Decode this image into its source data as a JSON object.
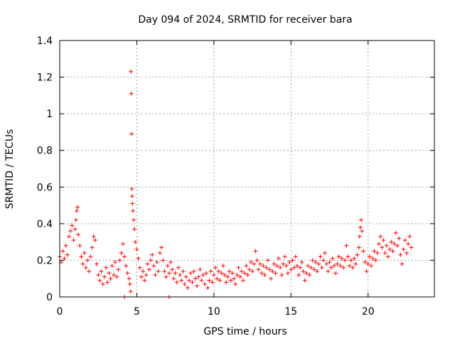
{
  "chart_data": {
    "type": "scatter",
    "title": "Day 094 of 2024, SRMTID for receiver bara",
    "xlabel": "GPS time / hours",
    "ylabel": "SRMTID / TECUs",
    "xlim": [
      0,
      24.3
    ],
    "ylim": [
      0,
      1.4
    ],
    "xticks": [
      0,
      5,
      10,
      15,
      20
    ],
    "yticks": [
      0,
      0.2,
      0.4,
      0.6,
      0.8,
      1,
      1.2,
      1.4
    ],
    "xtick_labels": [
      "0",
      "5",
      "10",
      "15",
      "20"
    ],
    "ytick_labels": [
      "0",
      "0.2",
      "0.4",
      "0.6",
      "0.8",
      "1",
      "1.2",
      "1.4"
    ],
    "grid": true,
    "marker": "+",
    "color": "#ff0000",
    "series": [
      {
        "name": "SRMTID",
        "points": [
          [
            0.0,
            0.22
          ],
          [
            0.1,
            0.19
          ],
          [
            0.2,
            0.25
          ],
          [
            0.3,
            0.21
          ],
          [
            0.4,
            0.28
          ],
          [
            0.5,
            0.23
          ],
          [
            0.6,
            0.33
          ],
          [
            0.7,
            0.36
          ],
          [
            0.8,
            0.39
          ],
          [
            0.9,
            0.31
          ],
          [
            1.0,
            0.37
          ],
          [
            1.05,
            0.42
          ],
          [
            1.1,
            0.47
          ],
          [
            1.15,
            0.49
          ],
          [
            1.2,
            0.34
          ],
          [
            1.3,
            0.28
          ],
          [
            1.4,
            0.22
          ],
          [
            1.5,
            0.18
          ],
          [
            1.6,
            0.24
          ],
          [
            1.7,
            0.16
          ],
          [
            1.8,
            0.2
          ],
          [
            1.9,
            0.14
          ],
          [
            2.0,
            0.22
          ],
          [
            2.1,
            0.27
          ],
          [
            2.2,
            0.33
          ],
          [
            2.3,
            0.31
          ],
          [
            2.4,
            0.18
          ],
          [
            2.5,
            0.12
          ],
          [
            2.6,
            0.09
          ],
          [
            2.7,
            0.14
          ],
          [
            2.8,
            0.07
          ],
          [
            2.9,
            0.11
          ],
          [
            3.0,
            0.16
          ],
          [
            3.1,
            0.08
          ],
          [
            3.2,
            0.13
          ],
          [
            3.3,
            0.1
          ],
          [
            3.4,
            0.17
          ],
          [
            3.5,
            0.12
          ],
          [
            3.6,
            0.19
          ],
          [
            3.7,
            0.11
          ],
          [
            3.8,
            0.15
          ],
          [
            3.9,
            0.2
          ],
          [
            4.0,
            0.24
          ],
          [
            4.1,
            0.29
          ],
          [
            4.2,
            0.22
          ],
          [
            4.2,
            0.0
          ],
          [
            4.3,
            0.17
          ],
          [
            4.4,
            0.13
          ],
          [
            4.5,
            0.1
          ],
          [
            4.55,
            0.07
          ],
          [
            4.6,
            0.03
          ],
          [
            4.62,
            1.23
          ],
          [
            4.64,
            1.11
          ],
          [
            4.66,
            0.89
          ],
          [
            4.68,
            0.59
          ],
          [
            4.7,
            0.55
          ],
          [
            4.72,
            0.51
          ],
          [
            4.75,
            0.47
          ],
          [
            4.8,
            0.42
          ],
          [
            4.85,
            0.37
          ],
          [
            4.9,
            0.3
          ],
          [
            5.0,
            0.26
          ],
          [
            5.1,
            0.21
          ],
          [
            5.2,
            0.16
          ],
          [
            5.3,
            0.11
          ],
          [
            5.4,
            0.14
          ],
          [
            5.5,
            0.09
          ],
          [
            5.6,
            0.12
          ],
          [
            5.7,
            0.18
          ],
          [
            5.8,
            0.15
          ],
          [
            5.9,
            0.2
          ],
          [
            6.0,
            0.23
          ],
          [
            6.1,
            0.17
          ],
          [
            6.2,
            0.12
          ],
          [
            6.3,
            0.19
          ],
          [
            6.4,
            0.14
          ],
          [
            6.5,
            0.24
          ],
          [
            6.6,
            0.27
          ],
          [
            6.7,
            0.2
          ],
          [
            6.8,
            0.14
          ],
          [
            6.9,
            0.11
          ],
          [
            7.0,
            0.17
          ],
          [
            7.1,
            0.13
          ],
          [
            7.1,
            0.0
          ],
          [
            7.2,
            0.19
          ],
          [
            7.3,
            0.15
          ],
          [
            7.4,
            0.1
          ],
          [
            7.5,
            0.13
          ],
          [
            7.6,
            0.08
          ],
          [
            7.7,
            0.16
          ],
          [
            7.8,
            0.12
          ],
          [
            7.9,
            0.09
          ],
          [
            8.0,
            0.14
          ],
          [
            8.1,
            0.07
          ],
          [
            8.2,
            0.11
          ],
          [
            8.3,
            0.05
          ],
          [
            8.4,
            0.09
          ],
          [
            8.5,
            0.13
          ],
          [
            8.6,
            0.08
          ],
          [
            8.7,
            0.14
          ],
          [
            8.8,
            0.1
          ],
          [
            8.9,
            0.06
          ],
          [
            9.0,
            0.11
          ],
          [
            9.1,
            0.15
          ],
          [
            9.2,
            0.09
          ],
          [
            9.3,
            0.12
          ],
          [
            9.4,
            0.07
          ],
          [
            9.5,
            0.13
          ],
          [
            9.6,
            0.05
          ],
          [
            9.7,
            0.09
          ],
          [
            9.8,
            0.14
          ],
          [
            9.9,
            0.08
          ],
          [
            10.0,
            0.12
          ],
          [
            10.1,
            0.16
          ],
          [
            10.2,
            0.1
          ],
          [
            10.3,
            0.14
          ],
          [
            10.4,
            0.09
          ],
          [
            10.5,
            0.13
          ],
          [
            10.6,
            0.17
          ],
          [
            10.7,
            0.12
          ],
          [
            10.8,
            0.08
          ],
          [
            10.9,
            0.11
          ],
          [
            11.0,
            0.14
          ],
          [
            11.1,
            0.09
          ],
          [
            11.2,
            0.13
          ],
          [
            11.3,
            0.1
          ],
          [
            11.4,
            0.07
          ],
          [
            11.5,
            0.12
          ],
          [
            11.6,
            0.16
          ],
          [
            11.7,
            0.11
          ],
          [
            11.8,
            0.14
          ],
          [
            11.9,
            0.09
          ],
          [
            12.0,
            0.13
          ],
          [
            12.1,
            0.17
          ],
          [
            12.2,
            0.12
          ],
          [
            12.3,
            0.15
          ],
          [
            12.4,
            0.19
          ],
          [
            12.5,
            0.14
          ],
          [
            12.6,
            0.18
          ],
          [
            12.7,
            0.25
          ],
          [
            12.8,
            0.2
          ],
          [
            12.9,
            0.15
          ],
          [
            13.0,
            0.18
          ],
          [
            13.1,
            0.13
          ],
          [
            13.2,
            0.17
          ],
          [
            13.3,
            0.12
          ],
          [
            13.4,
            0.16
          ],
          [
            13.5,
            0.2
          ],
          [
            13.6,
            0.15
          ],
          [
            13.7,
            0.1
          ],
          [
            13.8,
            0.14
          ],
          [
            13.9,
            0.18
          ],
          [
            14.0,
            0.13
          ],
          [
            14.1,
            0.17
          ],
          [
            14.2,
            0.21
          ],
          [
            14.3,
            0.16
          ],
          [
            14.4,
            0.12
          ],
          [
            14.5,
            0.18
          ],
          [
            14.6,
            0.22
          ],
          [
            14.7,
            0.17
          ],
          [
            14.8,
            0.13
          ],
          [
            14.9,
            0.19
          ],
          [
            15.0,
            0.15
          ],
          [
            15.1,
            0.2
          ],
          [
            15.2,
            0.16
          ],
          [
            15.3,
            0.22
          ],
          [
            15.4,
            0.17
          ],
          [
            15.5,
            0.12
          ],
          [
            15.6,
            0.16
          ],
          [
            15.7,
            0.19
          ],
          [
            15.8,
            0.14
          ],
          [
            15.9,
            0.09
          ],
          [
            16.0,
            0.13
          ],
          [
            16.1,
            0.17
          ],
          [
            16.2,
            0.12
          ],
          [
            16.3,
            0.16
          ],
          [
            16.4,
            0.2
          ],
          [
            16.5,
            0.15
          ],
          [
            16.6,
            0.19
          ],
          [
            16.7,
            0.14
          ],
          [
            16.8,
            0.18
          ],
          [
            16.9,
            0.22
          ],
          [
            17.0,
            0.16
          ],
          [
            17.1,
            0.2
          ],
          [
            17.2,
            0.24
          ],
          [
            17.3,
            0.18
          ],
          [
            17.4,
            0.14
          ],
          [
            17.5,
            0.19
          ],
          [
            17.6,
            0.16
          ],
          [
            17.7,
            0.21
          ],
          [
            17.8,
            0.17
          ],
          [
            17.9,
            0.13
          ],
          [
            18.0,
            0.18
          ],
          [
            18.1,
            0.22
          ],
          [
            18.2,
            0.17
          ],
          [
            18.3,
            0.21
          ],
          [
            18.4,
            0.16
          ],
          [
            18.5,
            0.2
          ],
          [
            18.6,
            0.28
          ],
          [
            18.7,
            0.22
          ],
          [
            18.8,
            0.17
          ],
          [
            18.9,
            0.2
          ],
          [
            19.0,
            0.16
          ],
          [
            19.1,
            0.21
          ],
          [
            19.2,
            0.18
          ],
          [
            19.3,
            0.23
          ],
          [
            19.4,
            0.27
          ],
          [
            19.45,
            0.33
          ],
          [
            19.5,
            0.38
          ],
          [
            19.55,
            0.42
          ],
          [
            19.6,
            0.36
          ],
          [
            19.7,
            0.25
          ],
          [
            19.8,
            0.19
          ],
          [
            19.9,
            0.14
          ],
          [
            20.0,
            0.18
          ],
          [
            20.1,
            0.22
          ],
          [
            20.2,
            0.17
          ],
          [
            20.3,
            0.21
          ],
          [
            20.4,
            0.25
          ],
          [
            20.5,
            0.2
          ],
          [
            20.6,
            0.24
          ],
          [
            20.7,
            0.29
          ],
          [
            20.8,
            0.33
          ],
          [
            20.9,
            0.27
          ],
          [
            21.0,
            0.31
          ],
          [
            21.1,
            0.24
          ],
          [
            21.2,
            0.28
          ],
          [
            21.3,
            0.22
          ],
          [
            21.4,
            0.26
          ],
          [
            21.5,
            0.3
          ],
          [
            21.6,
            0.25
          ],
          [
            21.7,
            0.29
          ],
          [
            21.8,
            0.35
          ],
          [
            21.9,
            0.28
          ],
          [
            22.0,
            0.32
          ],
          [
            22.1,
            0.23
          ],
          [
            22.2,
            0.18
          ],
          [
            22.3,
            0.26
          ],
          [
            22.4,
            0.31
          ],
          [
            22.5,
            0.24
          ],
          [
            22.6,
            0.29
          ],
          [
            22.7,
            0.33
          ],
          [
            22.8,
            0.27
          ]
        ]
      }
    ]
  }
}
